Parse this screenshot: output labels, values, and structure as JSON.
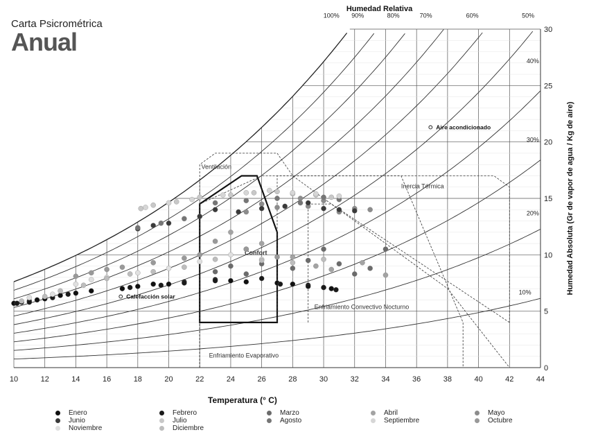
{
  "header": {
    "line1": "Carta Psicrométrica",
    "line2": "Anual"
  },
  "chart_data": {
    "type": "scatter",
    "title": "Carta Psicrométrica Anual",
    "xlabel": "Temperatura (° C)",
    "ylabel": "Humedad Absoluta  (Gr de vapor de agua / Kg de aire)",
    "top_label": "Humedad Relativa",
    "xlim": [
      10,
      44
    ],
    "ylim": [
      0,
      30
    ],
    "x_ticks": [
      10,
      12,
      14,
      16,
      18,
      20,
      22,
      24,
      26,
      28,
      30,
      32,
      34,
      36,
      38,
      40,
      42,
      44
    ],
    "y_ticks": [
      0,
      5,
      10,
      15,
      20,
      25,
      30
    ],
    "rh_curves": [
      10,
      20,
      30,
      40,
      50,
      60,
      70,
      80,
      90,
      100
    ],
    "rh_labels": [
      {
        "text": "100%",
        "x": 30.5,
        "y": 31.0
      },
      {
        "text": "90%",
        "x": 32.2,
        "y": 31.0
      },
      {
        "text": "80%",
        "x": 34.5,
        "y": 31.0
      },
      {
        "text": "70%",
        "x": 36.6,
        "y": 31.0
      },
      {
        "text": "60%",
        "x": 39.6,
        "y": 31.0
      },
      {
        "text": "50%",
        "x": 43.2,
        "y": 31.0
      },
      {
        "text": "40%",
        "x": 43.5,
        "y": 27.0
      },
      {
        "text": "30%",
        "x": 43.5,
        "y": 20.0
      },
      {
        "text": "20%",
        "x": 43.5,
        "y": 13.5
      },
      {
        "text": "10%",
        "x": 43.0,
        "y": 6.5
      }
    ],
    "zones": [
      {
        "name": "Confort",
        "label_at": [
          24.9,
          10.0
        ],
        "points": [
          [
            22,
            4
          ],
          [
            22,
            14.5
          ],
          [
            24.7,
            17
          ],
          [
            25.7,
            17
          ],
          [
            27,
            12
          ],
          [
            27,
            4
          ]
        ]
      },
      {
        "name": "Ventilación",
        "label_at": [
          22.1,
          17.6
        ],
        "points": [
          [
            22,
            0
          ],
          [
            22,
            18
          ],
          [
            23,
            19
          ],
          [
            27,
            19
          ],
          [
            28,
            17
          ],
          [
            38,
            7
          ],
          [
            42,
            0
          ]
        ]
      },
      {
        "name": "Inercia Térmica",
        "label_at": [
          35.0,
          15.9
        ],
        "points": [
          [
            27,
            4
          ],
          [
            27,
            17
          ],
          [
            41,
            17
          ],
          [
            42,
            16
          ],
          [
            42,
            4
          ]
        ]
      },
      {
        "name": "Enfriamiento Convectivo Nocturno",
        "label_at": [
          29.4,
          5.2
        ],
        "points": [
          [
            29,
            4
          ],
          [
            29,
            14.5
          ],
          [
            30.5,
            14.5
          ],
          [
            42,
            4
          ]
        ]
      },
      {
        "name": "Enfriamiento Evaporativo",
        "label_at": [
          22.6,
          0.9
        ],
        "points": [
          [
            22,
            0
          ],
          [
            22,
            14.5
          ],
          [
            26,
            17
          ],
          [
            35,
            17
          ],
          [
            39,
            4
          ],
          [
            39,
            0
          ]
        ]
      }
    ],
    "markers": [
      {
        "name": "Aire acondicionado",
        "x": 36.9,
        "y": 21.3
      },
      {
        "name": "Calefacción solar",
        "x": 16.9,
        "y": 6.3
      }
    ],
    "series": [
      {
        "name": "Enero",
        "color": "#111111",
        "points": [
          [
            10,
            5.7
          ],
          [
            10.5,
            5.8
          ],
          [
            11,
            5.9
          ],
          [
            11.5,
            6
          ],
          [
            12,
            6.1
          ],
          [
            13,
            6.4
          ],
          [
            14,
            6.6
          ],
          [
            15,
            6.8
          ],
          [
            17,
            7
          ],
          [
            18,
            7.2
          ],
          [
            19,
            7.4
          ],
          [
            20,
            7.4
          ],
          [
            21,
            7.6
          ],
          [
            23,
            7.8
          ],
          [
            24,
            7.7
          ],
          [
            25,
            7.6
          ],
          [
            27,
            7.5
          ],
          [
            28,
            7.4
          ],
          [
            29,
            7.3
          ],
          [
            30,
            7.1
          ],
          [
            30.5,
            7
          ]
        ]
      },
      {
        "name": "Febrero",
        "color": "#1a1a1a",
        "points": [
          [
            10.2,
            5.7
          ],
          [
            11,
            5.8
          ],
          [
            12.5,
            6.2
          ],
          [
            13.5,
            6.5
          ],
          [
            17.5,
            7.1
          ],
          [
            19.5,
            7.3
          ],
          [
            21,
            7.5
          ],
          [
            23,
            7.7
          ],
          [
            26,
            7.9
          ],
          [
            27.2,
            7.4
          ],
          [
            29,
            7.2
          ],
          [
            30,
            7.1
          ],
          [
            30.8,
            6.9
          ]
        ]
      },
      {
        "name": "Marzo",
        "color": "#6b6b6b",
        "points": [
          [
            23,
            8.5
          ],
          [
            24,
            9
          ],
          [
            25,
            8.3
          ],
          [
            26,
            9.2
          ],
          [
            28,
            8.8
          ],
          [
            29,
            9.5
          ],
          [
            30,
            10.5
          ],
          [
            31,
            9.2
          ],
          [
            32,
            8.3
          ],
          [
            33,
            8.8
          ],
          [
            34,
            10.5
          ]
        ]
      },
      {
        "name": "Abril",
        "color": "#a3a3a3",
        "points": [
          [
            24,
            12
          ],
          [
            25,
            10.5
          ],
          [
            26,
            11
          ],
          [
            28,
            9.8
          ],
          [
            29.5,
            9
          ],
          [
            30.5,
            8.7
          ],
          [
            32.5,
            9.3
          ],
          [
            34,
            8.2
          ]
        ]
      },
      {
        "name": "Mayo",
        "color": "#8c8c8c",
        "points": [
          [
            25,
            13.8
          ],
          [
            26,
            14.5
          ],
          [
            27,
            14.2
          ],
          [
            28.5,
            15
          ],
          [
            29,
            14.3
          ],
          [
            30,
            14.8
          ],
          [
            31,
            13.8
          ],
          [
            32,
            14.1
          ],
          [
            33,
            14
          ]
        ]
      },
      {
        "name": "Junio",
        "color": "#3a3a3a",
        "points": [
          [
            18,
            12.3
          ],
          [
            19,
            12.6
          ],
          [
            20,
            12.8
          ],
          [
            22,
            13.4
          ],
          [
            23,
            14
          ],
          [
            24.5,
            13.8
          ],
          [
            26,
            14.1
          ],
          [
            27.5,
            14.3
          ],
          [
            29,
            14.6
          ],
          [
            30,
            14.1
          ],
          [
            31,
            14
          ],
          [
            32,
            13.9
          ]
        ]
      },
      {
        "name": "Julio",
        "color": "#c8c8c8",
        "points": [
          [
            18.2,
            14.1
          ],
          [
            19,
            14.4
          ],
          [
            20.5,
            14.7
          ],
          [
            22,
            15.1
          ],
          [
            24,
            15.3
          ],
          [
            25.5,
            15.5
          ],
          [
            27,
            15.6
          ],
          [
            28,
            15.4
          ],
          [
            29.5,
            15.3
          ],
          [
            30.5,
            15.1
          ]
        ]
      },
      {
        "name": "Agosto",
        "color": "#767676",
        "points": [
          [
            18,
            12.4
          ],
          [
            19.5,
            12.8
          ],
          [
            21,
            13.2
          ],
          [
            23,
            14.6
          ],
          [
            25,
            14.8
          ],
          [
            27,
            15
          ],
          [
            28.5,
            14.6
          ],
          [
            30,
            15.1
          ],
          [
            31,
            14.9
          ]
        ]
      },
      {
        "name": "Septiembre",
        "color": "#d6d6d6",
        "points": [
          [
            18.5,
            14.2
          ],
          [
            20,
            14.6
          ],
          [
            21.5,
            14.9
          ],
          [
            23.5,
            15.3
          ],
          [
            25,
            15.5
          ],
          [
            26.5,
            15.7
          ],
          [
            28,
            15.5
          ],
          [
            29.5,
            15.4
          ],
          [
            31,
            15.2
          ]
        ]
      },
      {
        "name": "Octubre",
        "color": "#999999",
        "points": [
          [
            14,
            8.1
          ],
          [
            15,
            8.4
          ],
          [
            16,
            8.7
          ],
          [
            17,
            8.9
          ],
          [
            19,
            9.3
          ],
          [
            21,
            9.7
          ],
          [
            22,
            10
          ],
          [
            23,
            11.2
          ],
          [
            25,
            10.5
          ],
          [
            27,
            9.8
          ]
        ]
      },
      {
        "name": "Noviembre",
        "color": "#e0e0e0",
        "points": [
          [
            11,
            6.2
          ],
          [
            12.5,
            6.5
          ],
          [
            14,
            7.4
          ],
          [
            15,
            7.8
          ],
          [
            16,
            8
          ],
          [
            18,
            8.4
          ],
          [
            20,
            8.8
          ],
          [
            22,
            9.4
          ],
          [
            24,
            10
          ],
          [
            26,
            9.6
          ]
        ]
      },
      {
        "name": "Diciembre",
        "color": "#bdbdbd",
        "points": [
          [
            10.5,
            5.9
          ],
          [
            12,
            6.3
          ],
          [
            13,
            6.8
          ],
          [
            14.5,
            7.3
          ],
          [
            16,
            7.9
          ],
          [
            17.5,
            8.3
          ],
          [
            19,
            8.5
          ],
          [
            21,
            8.9
          ],
          [
            23,
            9.6
          ],
          [
            26,
            9.5
          ],
          [
            28,
            9.3
          ],
          [
            30,
            9.6
          ]
        ]
      }
    ],
    "legend": [
      {
        "label": "Enero",
        "color": "#111111"
      },
      {
        "label": "Febrero",
        "color": "#1a1a1a"
      },
      {
        "label": "Marzo",
        "color": "#6b6b6b"
      },
      {
        "label": "Abril",
        "color": "#a3a3a3"
      },
      {
        "label": "Mayo",
        "color": "#8c8c8c"
      },
      {
        "label": "Junio",
        "color": "#3a3a3a"
      },
      {
        "label": "Julio",
        "color": "#c8c8c8"
      },
      {
        "label": "Agosto",
        "color": "#767676"
      },
      {
        "label": "Septiembre",
        "color": "#d6d6d6"
      },
      {
        "label": "Octubre",
        "color": "#999999"
      },
      {
        "label": "Noviembre",
        "color": "#e0e0e0"
      },
      {
        "label": "Diciembre",
        "color": "#bdbdbd"
      }
    ],
    "grid": true,
    "legend_position": "bottom"
  }
}
